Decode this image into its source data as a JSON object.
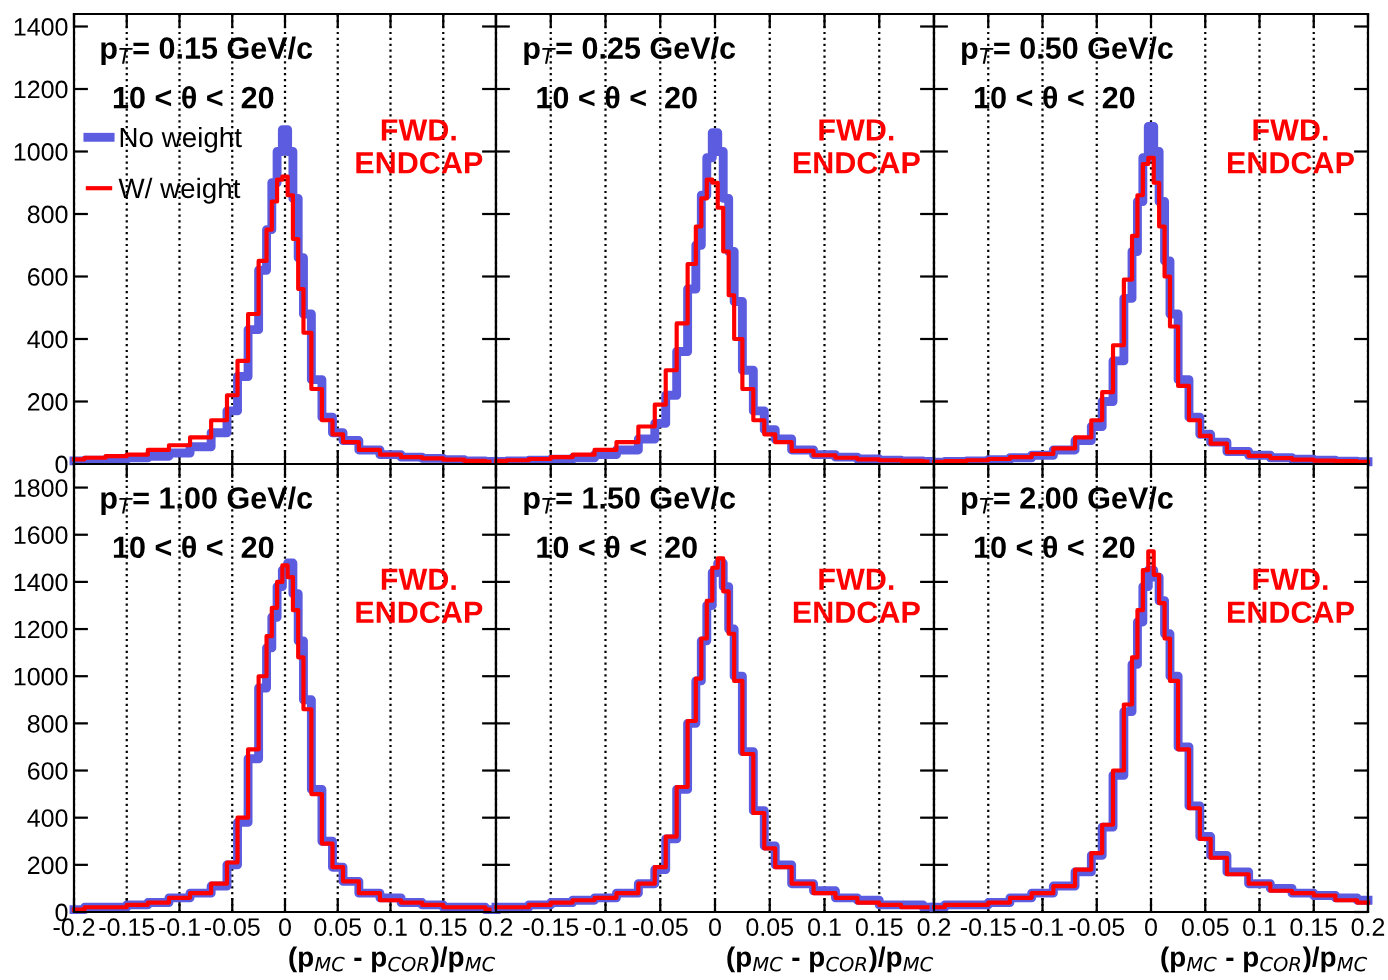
{
  "chart_data": [
    {
      "type": "step",
      "x": [
        -0.2,
        -0.18,
        -0.16,
        -0.14,
        -0.12,
        -0.1,
        -0.08,
        -0.06,
        -0.05,
        -0.04,
        -0.03,
        -0.02,
        -0.015,
        -0.01,
        -0.005,
        0,
        0.005,
        0.01,
        0.015,
        0.02,
        0.03,
        0.04,
        0.05,
        0.06,
        0.08,
        0.1,
        0.12,
        0.14,
        0.16,
        0.18,
        0.2
      ],
      "series": [
        {
          "name": "No weight",
          "color": "#5c5ce0",
          "values": [
            10,
            12,
            15,
            20,
            25,
            35,
            55,
            100,
            170,
            280,
            430,
            620,
            750,
            900,
            1000,
            1070,
            1000,
            850,
            660,
            480,
            270,
            150,
            100,
            75,
            45,
            30,
            22,
            18,
            14,
            10,
            8
          ]
        },
        {
          "name": "W/ weight",
          "color": "#ff0000",
          "values": [
            15,
            20,
            25,
            30,
            45,
            60,
            85,
            140,
            220,
            330,
            480,
            650,
            750,
            840,
            910,
            920,
            860,
            720,
            560,
            420,
            240,
            140,
            95,
            70,
            45,
            30,
            22,
            18,
            14,
            10,
            8
          ]
        }
      ],
      "xlim": [
        -0.2,
        0.2
      ],
      "xticks": [
        -0.2,
        -0.15,
        -0.1,
        -0.05,
        0,
        0.05,
        0.1,
        0.15,
        0.2
      ],
      "ylim": [
        0,
        1440
      ],
      "yticks": [
        0,
        200,
        400,
        600,
        800,
        1000,
        1200,
        1400
      ],
      "tick_labels": "y",
      "grid": "x",
      "legend": "top left",
      "annotations": [
        "p$_{T}$= 0.15 GeV/c",
        "10 < θ <  20",
        "FWD.\nENDCAP"
      ]
    },
    {
      "type": "step",
      "x": [
        -0.2,
        -0.18,
        -0.16,
        -0.14,
        -0.12,
        -0.1,
        -0.08,
        -0.06,
        -0.05,
        -0.04,
        -0.03,
        -0.02,
        -0.015,
        -0.01,
        -0.005,
        0,
        0.005,
        0.01,
        0.015,
        0.02,
        0.03,
        0.04,
        0.05,
        0.06,
        0.08,
        0.1,
        0.12,
        0.14,
        0.16,
        0.18,
        0.2
      ],
      "series": [
        {
          "color": "#5c5ce0",
          "values": [
            8,
            10,
            12,
            15,
            20,
            30,
            45,
            80,
            130,
            220,
            360,
            560,
            700,
            860,
            980,
            1060,
            1000,
            850,
            680,
            520,
            300,
            170,
            110,
            80,
            45,
            30,
            22,
            16,
            12,
            10,
            8
          ]
        },
        {
          "color": "#ff0000",
          "values": [
            10,
            12,
            16,
            22,
            30,
            45,
            70,
            120,
            190,
            300,
            450,
            640,
            760,
            850,
            910,
            900,
            820,
            680,
            540,
            400,
            240,
            140,
            95,
            70,
            42,
            28,
            20,
            15,
            12,
            10,
            8
          ]
        }
      ],
      "xlim": [
        -0.2,
        0.2
      ],
      "xticks": [
        -0.2,
        -0.15,
        -0.1,
        -0.05,
        0,
        0.05,
        0.1,
        0.15,
        0.2
      ],
      "ylim": [
        0,
        1440
      ],
      "yticks": [
        0,
        200,
        400,
        600,
        800,
        1000,
        1200,
        1400
      ],
      "tick_labels": false,
      "grid": "x",
      "annotations": [
        "p$_{T}$= 0.25 GeV/c",
        "10 < θ <  20",
        "FWD.\nENDCAP"
      ]
    },
    {
      "type": "step",
      "x": [
        -0.2,
        -0.18,
        -0.16,
        -0.14,
        -0.12,
        -0.1,
        -0.08,
        -0.06,
        -0.05,
        -0.04,
        -0.03,
        -0.02,
        -0.015,
        -0.01,
        -0.005,
        0,
        0.005,
        0.01,
        0.015,
        0.02,
        0.03,
        0.04,
        0.05,
        0.06,
        0.08,
        0.1,
        0.12,
        0.14,
        0.16,
        0.18,
        0.2
      ],
      "series": [
        {
          "color": "#5c5ce0",
          "values": [
            6,
            8,
            10,
            14,
            20,
            28,
            45,
            75,
            120,
            200,
            330,
            530,
            680,
            840,
            980,
            1080,
            1000,
            840,
            650,
            480,
            270,
            150,
            95,
            70,
            40,
            28,
            20,
            15,
            12,
            9,
            7
          ]
        },
        {
          "color": "#ff0000",
          "values": [
            7,
            9,
            12,
            16,
            22,
            32,
            50,
            85,
            140,
            230,
            380,
            590,
            730,
            860,
            960,
            980,
            900,
            760,
            600,
            440,
            250,
            140,
            90,
            65,
            38,
            26,
            19,
            14,
            11,
            9,
            7
          ]
        }
      ],
      "xlim": [
        -0.2,
        0.2
      ],
      "xticks": [
        -0.2,
        -0.15,
        -0.1,
        -0.05,
        0,
        0.05,
        0.1,
        0.15,
        0.2
      ],
      "ylim": [
        0,
        1440
      ],
      "yticks": [
        0,
        200,
        400,
        600,
        800,
        1000,
        1200,
        1400
      ],
      "tick_labels": false,
      "grid": "x",
      "annotations": [
        "p$_{T}$= 0.50 GeV/c",
        "10 < θ <  20",
        "FWD.\nENDCAP"
      ]
    },
    {
      "type": "step",
      "x": [
        -0.2,
        -0.18,
        -0.16,
        -0.14,
        -0.12,
        -0.1,
        -0.08,
        -0.06,
        -0.05,
        -0.04,
        -0.03,
        -0.02,
        -0.015,
        -0.01,
        -0.005,
        0,
        0.005,
        0.01,
        0.015,
        0.02,
        0.03,
        0.04,
        0.05,
        0.06,
        0.08,
        0.1,
        0.12,
        0.14,
        0.16,
        0.18,
        0.2
      ],
      "series": [
        {
          "color": "#5c5ce0",
          "values": [
            10,
            20,
            20,
            30,
            40,
            60,
            80,
            110,
            200,
            380,
            650,
            950,
            1120,
            1250,
            1380,
            1450,
            1480,
            1350,
            1150,
            900,
            520,
            300,
            190,
            130,
            80,
            60,
            40,
            30,
            20,
            20,
            10
          ]
        },
        {
          "color": "#ff0000",
          "values": [
            10,
            20,
            20,
            30,
            40,
            60,
            80,
            120,
            210,
            400,
            690,
            1000,
            1170,
            1290,
            1400,
            1470,
            1420,
            1280,
            1080,
            860,
            500,
            290,
            190,
            130,
            80,
            50,
            40,
            30,
            20,
            20,
            10
          ]
        }
      ],
      "xlim": [
        -0.2,
        0.2
      ],
      "xticks": [
        -0.2,
        -0.15,
        -0.1,
        -0.05,
        0,
        0.05,
        0.1,
        0.15,
        0.2
      ],
      "ylim": [
        0,
        1900
      ],
      "yticks": [
        0,
        200,
        400,
        600,
        800,
        1000,
        1200,
        1400,
        1600,
        1800
      ],
      "grid": "x",
      "xlabel": "(p$_{MC}$ - p$_{COR}$)/p$_{MC}$",
      "annotations": [
        "p$_{T}$= 1.00 GeV/c",
        "10 < θ <  20",
        "FWD.\nENDCAP"
      ]
    },
    {
      "type": "step",
      "x": [
        -0.2,
        -0.18,
        -0.16,
        -0.14,
        -0.12,
        -0.1,
        -0.08,
        -0.06,
        -0.05,
        -0.04,
        -0.03,
        -0.02,
        -0.015,
        -0.01,
        -0.005,
        0,
        0.005,
        0.01,
        0.015,
        0.02,
        0.03,
        0.04,
        0.05,
        0.06,
        0.08,
        0.1,
        0.12,
        0.14,
        0.16,
        0.18,
        0.2
      ],
      "series": [
        {
          "color": "#5c5ce0",
          "values": [
            20,
            20,
            30,
            40,
            50,
            60,
            80,
            120,
            180,
            310,
            520,
            800,
            980,
            1150,
            1300,
            1440,
            1480,
            1380,
            1200,
            1000,
            680,
            430,
            280,
            200,
            120,
            90,
            60,
            50,
            30,
            30,
            20
          ]
        },
        {
          "color": "#ff0000",
          "values": [
            20,
            20,
            30,
            40,
            50,
            60,
            80,
            120,
            190,
            320,
            530,
            810,
            990,
            1160,
            1320,
            1460,
            1500,
            1360,
            1180,
            980,
            670,
            420,
            270,
            190,
            120,
            80,
            60,
            40,
            30,
            20,
            20
          ]
        }
      ],
      "xlim": [
        -0.2,
        0.2
      ],
      "xticks": [
        {
          "value": -0.2,
          "label": null
        },
        -0.15,
        -0.1,
        -0.05,
        0,
        0.05,
        0.1,
        0.15,
        0.2
      ],
      "ylim": [
        0,
        1900
      ],
      "yticks": [
        0,
        200,
        400,
        600,
        800,
        1000,
        1200,
        1400,
        1600,
        1800
      ],
      "tick_labels": "x",
      "grid": "x",
      "xlabel": "(p$_{MC}$ - p$_{COR}$)/p$_{MC}$",
      "annotations": [
        "p$_{T}$= 1.50 GeV/c",
        "10 < θ <  20",
        "FWD.\nENDCAP"
      ]
    },
    {
      "type": "step",
      "x": [
        -0.2,
        -0.18,
        -0.16,
        -0.14,
        -0.12,
        -0.1,
        -0.08,
        -0.06,
        -0.05,
        -0.04,
        -0.03,
        -0.02,
        -0.015,
        -0.01,
        -0.005,
        0,
        0.005,
        0.01,
        0.015,
        0.02,
        0.03,
        0.04,
        0.05,
        0.06,
        0.08,
        0.1,
        0.12,
        0.14,
        0.16,
        0.18,
        0.2
      ],
      "series": [
        {
          "color": "#5c5ce0",
          "values": [
            20,
            30,
            30,
            40,
            60,
            80,
            110,
            170,
            240,
            360,
            580,
            850,
            1050,
            1230,
            1380,
            1450,
            1420,
            1320,
            1180,
            1000,
            700,
            450,
            320,
            240,
            170,
            120,
            100,
            80,
            70,
            60,
            50
          ]
        },
        {
          "color": "#ff0000",
          "values": [
            20,
            30,
            30,
            40,
            60,
            80,
            110,
            180,
            250,
            370,
            600,
            880,
            1080,
            1280,
            1450,
            1530,
            1430,
            1310,
            1160,
            980,
            690,
            440,
            310,
            230,
            160,
            120,
            90,
            80,
            70,
            50,
            40
          ]
        }
      ],
      "xlim": [
        -0.2,
        0.2
      ],
      "xticks": [
        {
          "value": -0.2,
          "label": null
        },
        -0.15,
        -0.1,
        -0.05,
        0,
        0.05,
        0.1,
        0.15,
        0.2
      ],
      "ylim": [
        0,
        1900
      ],
      "yticks": [
        0,
        200,
        400,
        600,
        800,
        1000,
        1200,
        1400,
        1600,
        1800
      ],
      "tick_labels": "x",
      "grid": "x",
      "xlabel": "(p$_{MC}$ - p$_{COR}$)/p$_{MC}$",
      "annotations": [
        "p$_{T}$= 2.00 GeV/c",
        "10 < θ <  20",
        "FWD.\nENDCAP"
      ]
    }
  ]
}
